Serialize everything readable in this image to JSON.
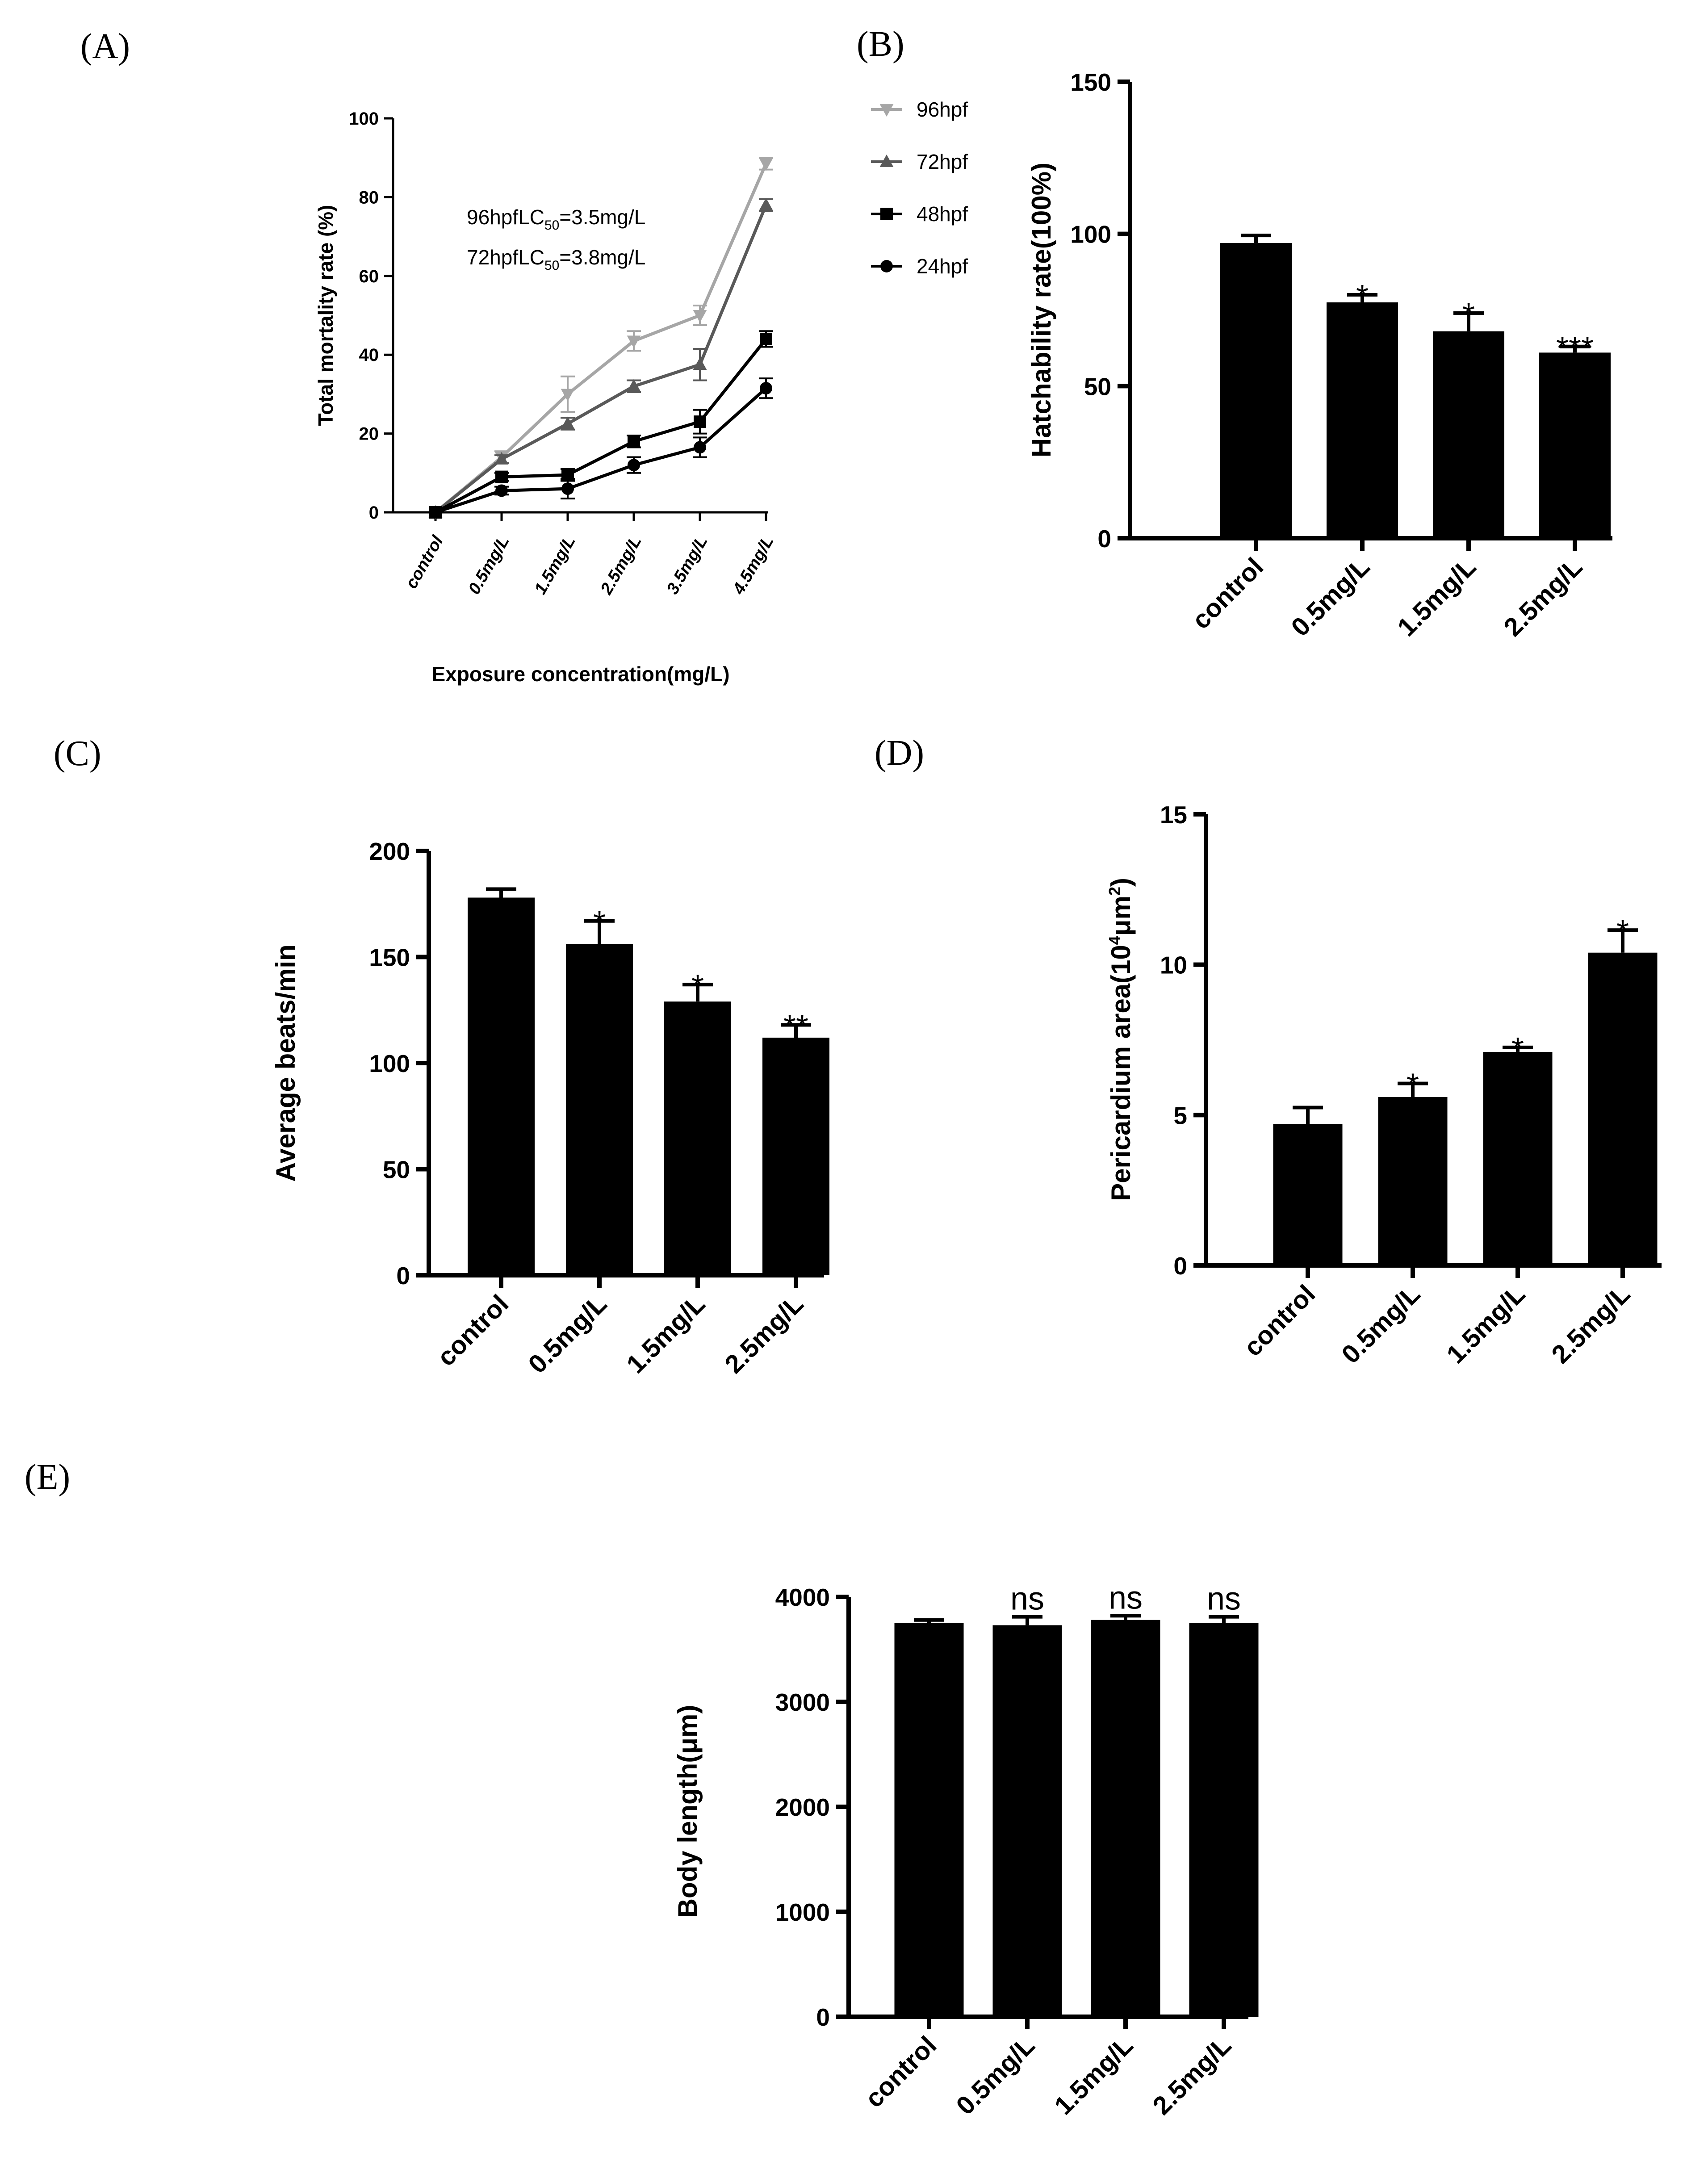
{
  "chart_data": [
    {
      "id": "A",
      "panel_label": "(A)",
      "type": "line",
      "categories": [
        "control",
        "0.5mg/L",
        "1.5mg/L",
        "2.5mg/L",
        "3.5mg/L",
        "4.5mg/L"
      ],
      "ylabel": "Total mortality rate (%)",
      "xlabel": "Exposure concentration(mg/L)",
      "ylim": [
        0,
        100
      ],
      "yticks": [
        0,
        20,
        40,
        60,
        80,
        100
      ],
      "series": [
        {
          "name": "96hpf",
          "color": "#a6a6a6",
          "marker": "triangle-down",
          "values": [
            0,
            14,
            30,
            43.5,
            50,
            88.5
          ],
          "errors": [
            0,
            1.5,
            4.5,
            2.5,
            2.5,
            1.5
          ]
        },
        {
          "name": "72hpf",
          "color": "#595959",
          "marker": "triangle-up",
          "values": [
            0,
            13.5,
            22.5,
            32,
            37.5,
            78
          ],
          "errors": [
            0,
            1,
            1.5,
            1.5,
            4,
            1.5
          ]
        },
        {
          "name": "48hpf",
          "color": "#000000",
          "marker": "square",
          "values": [
            0,
            9,
            9.5,
            18,
            23,
            44
          ],
          "errors": [
            0,
            1,
            1.5,
            1.5,
            3,
            2
          ]
        },
        {
          "name": "24hpf",
          "color": "#000000",
          "marker": "circle",
          "values": [
            0,
            5.5,
            6,
            12,
            16.5,
            31.5
          ],
          "errors": [
            0,
            1,
            2.5,
            2,
            2.5,
            2.5
          ]
        }
      ],
      "annotations": {
        "l1_main": "96hpfLC",
        "l1_sub": "50",
        "l1_tail": "=3.5mg/L",
        "l2_main": "72hpfLC",
        "l2_sub": "50",
        "l2_tail": "=3.8mg/L"
      },
      "legend": "top-right"
    },
    {
      "id": "B",
      "panel_label": "(B)",
      "type": "bar",
      "categories": [
        "control",
        "0.5mg/L",
        "1.5mg/L",
        "2.5mg/L"
      ],
      "values": [
        97,
        77.5,
        68,
        61
      ],
      "errors": [
        2.5,
        2.5,
        6,
        2
      ],
      "significance": [
        "",
        "*",
        "*",
        "***"
      ],
      "ylabel": "Hatchability rate(100%)",
      "ylim": [
        0,
        150
      ],
      "yticks": [
        0,
        50,
        100,
        150
      ]
    },
    {
      "id": "C",
      "panel_label": "(C)",
      "type": "bar",
      "categories": [
        "control",
        "0.5mg/L",
        "1.5mg/L",
        "2.5mg/L"
      ],
      "values": [
        178,
        156,
        129,
        112
      ],
      "errors": [
        4,
        11,
        8,
        6
      ],
      "significance": [
        "",
        "*",
        "*",
        "**"
      ],
      "ylabel": "Average beats/min",
      "ylim": [
        0,
        200
      ],
      "yticks": [
        0,
        50,
        100,
        150,
        200
      ]
    },
    {
      "id": "D",
      "panel_label": "(D)",
      "type": "bar",
      "categories": [
        "control",
        "0.5mg/L",
        "1.5mg/L",
        "2.5mg/L"
      ],
      "values": [
        4.7,
        5.6,
        7.1,
        10.4
      ],
      "errors": [
        0.55,
        0.45,
        0.15,
        0.75
      ],
      "significance": [
        "",
        "*",
        "*",
        "*"
      ],
      "ylabel_main": "Pericardium  area(10",
      "ylabel_sup1": "4",
      "ylabel_mid": "μm",
      "ylabel_sup2": "2",
      "ylabel_tail": ")",
      "ylim": [
        0,
        15
      ],
      "yticks": [
        0,
        5,
        10,
        15
      ]
    },
    {
      "id": "E",
      "panel_label": "(E)",
      "type": "bar",
      "categories": [
        "control",
        "0.5mg/L",
        "1.5mg/L",
        "2.5mg/L"
      ],
      "values": [
        3750,
        3730,
        3780,
        3750
      ],
      "errors": [
        30,
        80,
        40,
        60
      ],
      "significance": [
        "",
        "ns",
        "ns",
        "ns"
      ],
      "ylabel": "Body length(μm)",
      "ylim": [
        0,
        4000
      ],
      "yticks": [
        0,
        1000,
        2000,
        3000,
        4000
      ]
    }
  ]
}
